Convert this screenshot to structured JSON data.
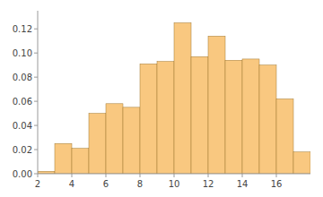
{
  "chart_data": {
    "type": "histogram",
    "bins": [
      2,
      3,
      4,
      5,
      6,
      7,
      8,
      9,
      10,
      11,
      12,
      13,
      14,
      15,
      16,
      17,
      18
    ],
    "values": [
      0.002,
      0.025,
      0.021,
      0.05,
      0.058,
      0.055,
      0.091,
      0.093,
      0.125,
      0.097,
      0.114,
      0.094,
      0.095,
      0.09,
      0.062,
      0.018
    ],
    "color": "#F9C880",
    "xlim": [
      2.0,
      18.0
    ],
    "ylim": [
      0.0,
      0.135
    ],
    "xticks": [
      2,
      4,
      6,
      8,
      10,
      12,
      14,
      16
    ],
    "yticks": [
      {
        "value": 0.0,
        "label": "0.00"
      },
      {
        "value": 0.02,
        "label": "0.02"
      },
      {
        "value": 0.04,
        "label": "0.04"
      },
      {
        "value": 0.06,
        "label": "0.06"
      },
      {
        "value": 0.08,
        "label": "0.08"
      },
      {
        "value": 0.1,
        "label": "0.10"
      },
      {
        "value": 0.12,
        "label": "0.12"
      }
    ]
  }
}
